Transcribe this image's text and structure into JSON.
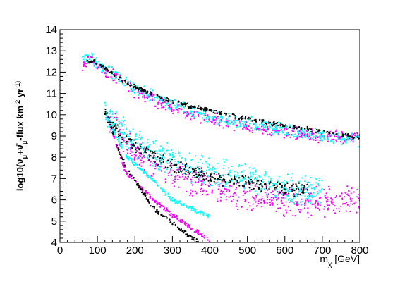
{
  "chart_data": {
    "type": "scatter",
    "title": "",
    "xlabel": "m_χ [GeV]",
    "ylabel": "log10(ν_μ+ν̄_μ-flux km^-2 yr^-1)",
    "xlim": [
      0,
      800
    ],
    "ylim": [
      4,
      14
    ],
    "x_ticks": [
      0,
      100,
      200,
      300,
      400,
      500,
      600,
      700,
      800
    ],
    "y_ticks": [
      4,
      5,
      6,
      7,
      8,
      9,
      10,
      11,
      12,
      13,
      14
    ],
    "grid": false,
    "legend": "none",
    "series": [
      {
        "color": "#ff00ff",
        "upper_band": [
          [
            60,
            12.4
          ],
          [
            80,
            12.6
          ],
          [
            100,
            12.3
          ],
          [
            150,
            11.8
          ],
          [
            200,
            11.1
          ],
          [
            300,
            10.3
          ],
          [
            400,
            9.8
          ],
          [
            500,
            9.4
          ],
          [
            600,
            9.2
          ],
          [
            700,
            9.0
          ],
          [
            800,
            8.9
          ]
        ],
        "lower_band_centre": [
          [
            130,
            9.9
          ],
          [
            200,
            8.1
          ],
          [
            300,
            7.2
          ],
          [
            400,
            6.6
          ],
          [
            500,
            6.2
          ],
          [
            600,
            5.9
          ],
          [
            700,
            5.9
          ],
          [
            800,
            6.0
          ]
        ],
        "low_edge": [
          [
            125,
            10.0
          ],
          [
            150,
            8.6
          ],
          [
            175,
            7.3
          ],
          [
            250,
            6.0
          ],
          [
            300,
            5.3
          ],
          [
            350,
            4.7
          ],
          [
            400,
            4.1
          ]
        ]
      },
      {
        "color": "#00ffff",
        "upper_band": [
          [
            60,
            12.6
          ],
          [
            80,
            12.8
          ],
          [
            100,
            12.4
          ],
          [
            150,
            11.9
          ],
          [
            200,
            11.2
          ],
          [
            300,
            10.5
          ],
          [
            400,
            9.9
          ],
          [
            500,
            9.6
          ],
          [
            600,
            9.3
          ],
          [
            700,
            9.0
          ],
          [
            800,
            8.8
          ]
        ],
        "lower_band_centre": [
          [
            120,
            10.1
          ],
          [
            200,
            8.6
          ],
          [
            300,
            7.8
          ],
          [
            400,
            7.3
          ],
          [
            500,
            7.0
          ],
          [
            600,
            6.6
          ],
          [
            700,
            6.4
          ]
        ],
        "low_edge": [
          [
            120,
            10.1
          ],
          [
            150,
            9.0
          ],
          [
            180,
            8.0
          ],
          [
            250,
            6.9
          ],
          [
            300,
            6.0
          ],
          [
            400,
            5.2
          ]
        ]
      },
      {
        "color": "#000000",
        "upper_band": [
          [
            70,
            12.5
          ],
          [
            90,
            12.5
          ],
          [
            120,
            12.2
          ],
          [
            150,
            11.8
          ],
          [
            200,
            11.3
          ],
          [
            300,
            10.6
          ],
          [
            400,
            10.2
          ],
          [
            500,
            9.8
          ],
          [
            600,
            9.5
          ],
          [
            700,
            9.2
          ],
          [
            800,
            8.9
          ]
        ],
        "lower_band_centre": [
          [
            120,
            10.1
          ],
          [
            160,
            9.0
          ],
          [
            200,
            8.5
          ],
          [
            300,
            7.6
          ],
          [
            400,
            7.1
          ],
          [
            500,
            6.8
          ],
          [
            600,
            6.5
          ],
          [
            660,
            6.5
          ]
        ],
        "low_edge": [
          [
            130,
            9.8
          ],
          [
            160,
            8.2
          ],
          [
            180,
            7.4
          ],
          [
            250,
            5.6
          ],
          [
            300,
            4.9
          ],
          [
            370,
            4.0
          ]
        ]
      }
    ]
  }
}
